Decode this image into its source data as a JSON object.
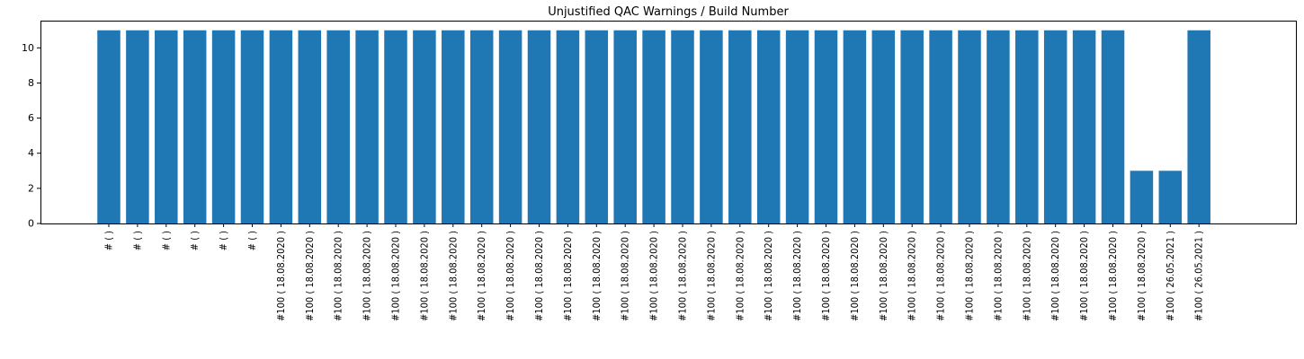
{
  "chart_data": {
    "type": "bar",
    "title": "Unjustified QAC Warnings / Build Number",
    "xlabel": "",
    "ylabel": "",
    "ylim": [
      0,
      11.55
    ],
    "yticks": [
      0,
      2,
      4,
      6,
      8,
      10
    ],
    "grid": false,
    "bar_color": "#1f77b4",
    "categories": [
      "#  (  )",
      "#  (  )",
      "#  (  )",
      "#  (  )",
      "#  (  )",
      "#  (  )",
      "#100 ( 18.08.2020 )",
      "#100 ( 18.08.2020 )",
      "#100 ( 18.08.2020 )",
      "#100 ( 18.08.2020 )",
      "#100 ( 18.08.2020 )",
      "#100 ( 18.08.2020 )",
      "#100 ( 18.08.2020 )",
      "#100 ( 18.08.2020 )",
      "#100 ( 18.08.2020 )",
      "#100 ( 18.08.2020 )",
      "#100 ( 18.08.2020 )",
      "#100 ( 18.08.2020 )",
      "#100 ( 18.08.2020 )",
      "#100 ( 18.08.2020 )",
      "#100 ( 18.08.2020 )",
      "#100 ( 18.08.2020 )",
      "#100 ( 18.08.2020 )",
      "#100 ( 18.08.2020 )",
      "#100 ( 18.08.2020 )",
      "#100 ( 18.08.2020 )",
      "#100 ( 18.08.2020 )",
      "#100 ( 18.08.2020 )",
      "#100 ( 18.08.2020 )",
      "#100 ( 18.08.2020 )",
      "#100 ( 18.08.2020 )",
      "#100 ( 18.08.2020 )",
      "#100 ( 18.08.2020 )",
      "#100 ( 18.08.2020 )",
      "#100 ( 18.08.2020 )",
      "#100 ( 18.08.2020 )",
      "#100 ( 18.08.2020 )",
      "#100 ( 26.05.2021 )",
      "#100 ( 26.05.2021 )"
    ],
    "values": [
      11,
      11,
      11,
      11,
      11,
      11,
      11,
      11,
      11,
      11,
      11,
      11,
      11,
      11,
      11,
      11,
      11,
      11,
      11,
      11,
      11,
      11,
      11,
      11,
      11,
      11,
      11,
      11,
      11,
      11,
      11,
      11,
      11,
      11,
      11,
      11,
      3,
      3,
      11
    ]
  }
}
